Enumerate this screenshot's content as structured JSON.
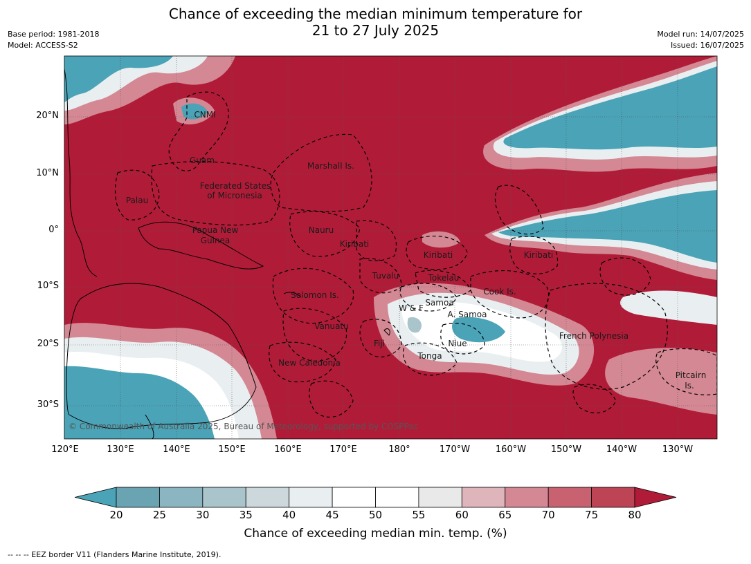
{
  "title_line1": "Chance of exceeding the median minimum temperature for",
  "title_line2": "21 to 27 July 2025",
  "base_period": "Base period: 1981-2018",
  "model": "Model: ACCESS-S2",
  "model_run": "Model run: 14/07/2025",
  "issued": "Issued: 16/07/2025",
  "lat_ticks": [
    "20°N",
    "10°N",
    "0°",
    "10°S",
    "20°S",
    "30°S"
  ],
  "lon_ticks": [
    "120°E",
    "130°E",
    "140°E",
    "150°E",
    "160°E",
    "170°E",
    "180°",
    "170°W",
    "160°W",
    "150°W",
    "140°W",
    "130°W"
  ],
  "places": [
    "CNMI",
    "Guam",
    "Marshall Is.",
    "Federated States",
    "of Micronesia",
    "Palau",
    "Papua New",
    "Guinea",
    "Nauru",
    "Kiribati",
    "Kiribati",
    "Kiribati",
    "Tuvalu",
    "Tokelau",
    "Cook Is.",
    "Solomon Is.",
    "W & F",
    "Samoa",
    "A. Samoa",
    "Vanuatu",
    "Fiji",
    "Niue",
    "French Polynesia",
    "Tonga",
    "New Caledonia",
    "Pitcairn",
    "Is."
  ],
  "copyright": "© Commonwealth of Australia 2025, Bureau of Meteorology, supported by COSPPac",
  "colorbar": {
    "ticks": [
      "20",
      "25",
      "30",
      "35",
      "40",
      "45",
      "50",
      "55",
      "60",
      "65",
      "70",
      "75",
      "80"
    ],
    "colors": [
      "#6aa4b3",
      "#8bb6c1",
      "#a9c4ca",
      "#ccd8db",
      "#e9eff1",
      "#ffffff",
      "#ffffff",
      "#e9e9e9",
      "#dfb5bc",
      "#d48894",
      "#c86270",
      "#bd4455"
    ],
    "under_color": "#4aa3b6",
    "over_color": "#b01c38",
    "label": "Chance of exceeding median min. temp. (%)"
  },
  "footnote": "--  --  -- EEZ border V11 (Flanders Marine Institute, 2019)."
}
